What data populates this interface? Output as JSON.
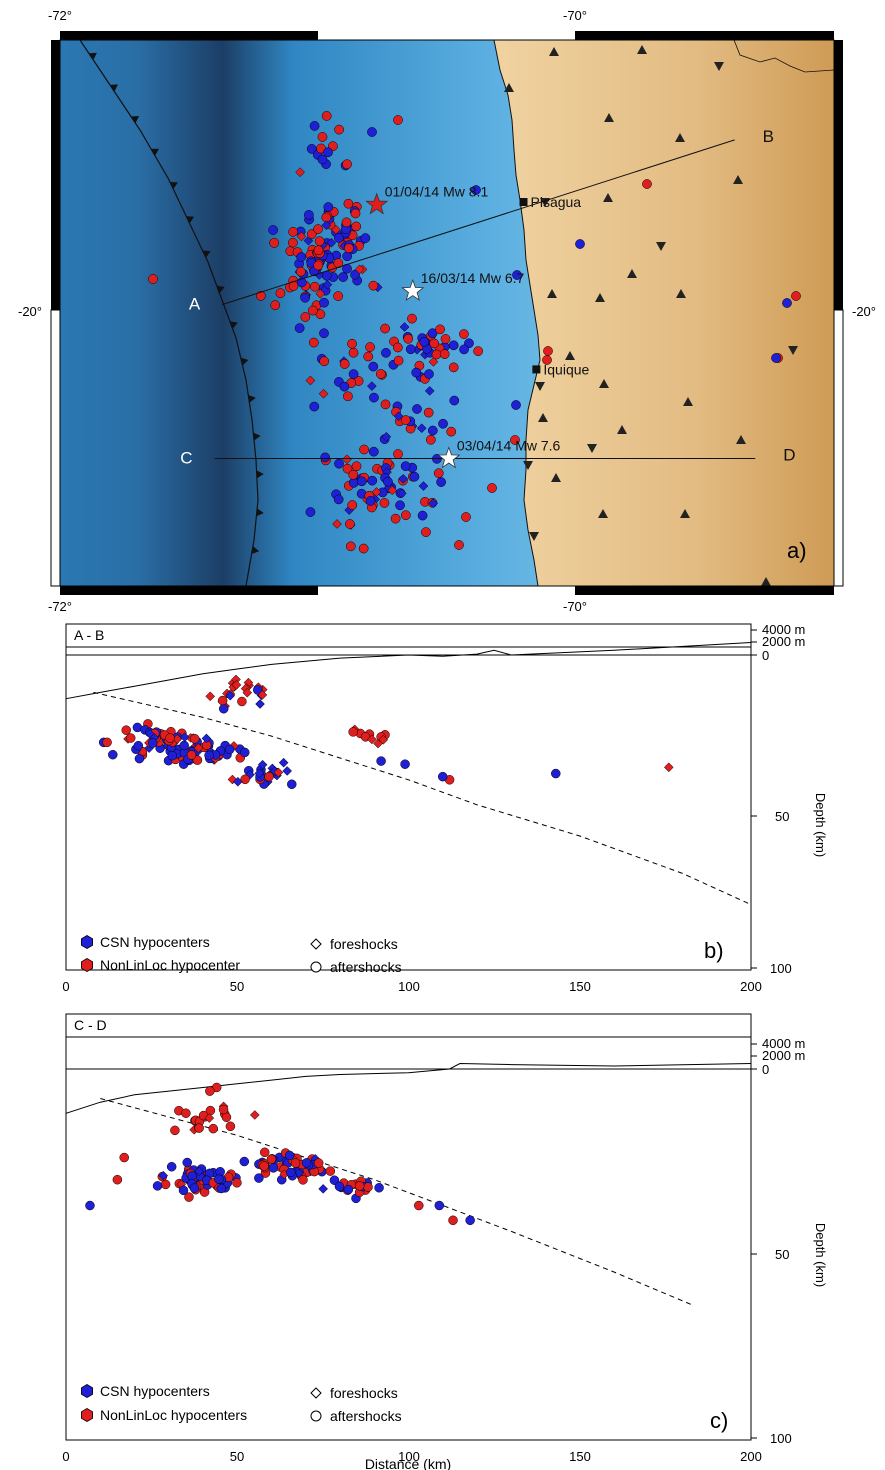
{
  "figure": {
    "map": {
      "panel_label": "a)",
      "lon_ticks": [
        "-72°",
        "-70°"
      ],
      "lat_tick": "-20°",
      "towns": [
        {
          "name": "Pisagua",
          "lon": -70.2,
          "lat": -19.6
        },
        {
          "name": "Iquique",
          "lon": -70.15,
          "lat": -20.22
        }
      ],
      "mainshocks": [
        {
          "label": "01/04/14   Mw 8.1",
          "lon": -70.77,
          "lat": -19.61
        },
        {
          "label": "16/03/14   Mw 6.7",
          "lon": -70.63,
          "lat": -19.93
        },
        {
          "label": "03/04/14   Mw 7.6",
          "lon": -70.49,
          "lat": -20.55
        }
      ],
      "profiles": [
        {
          "start": "A",
          "end": "B",
          "start_lon": -71.37,
          "start_lat": -19.98,
          "end_lon": -69.38,
          "end_lat": -19.37
        },
        {
          "start": "C",
          "end": "D",
          "start_lon": -71.4,
          "start_lat": -20.55,
          "end_lon": -69.3,
          "end_lat": -20.55
        }
      ]
    },
    "cross_sections": [
      {
        "id": "b",
        "profile_label": "A - B",
        "panel_label": "b)",
        "legend": {
          "csn": "CSN hypocenters",
          "nll": "NonLinLoc hypocenter",
          "foreshocks": "foreshocks",
          "aftershocks": "aftershocks"
        }
      },
      {
        "id": "c",
        "profile_label": "C - D",
        "panel_label": "c)",
        "legend": {
          "csn": "CSN hypocenters",
          "nll": "NonLinLoc hypocenters",
          "foreshocks": "foreshocks",
          "aftershocks": "aftershocks"
        }
      }
    ],
    "axes": {
      "x_ticks": [
        "0",
        "50",
        "100",
        "150",
        "200"
      ],
      "depth_ticks": [
        "50",
        "100"
      ],
      "zero_tick": "0",
      "elev_ticks": [
        "4000 m",
        "2000 m"
      ],
      "ylabel": "Depth (km)",
      "xlabel": "Distance (km)"
    },
    "colors": {
      "csn": "#1f1fd6",
      "nll": "#e01e1e",
      "ocean_deep": "#1a3f66",
      "ocean": "#2f86c2",
      "shelf": "#a9dbee",
      "land": "#e6c28c"
    }
  }
}
